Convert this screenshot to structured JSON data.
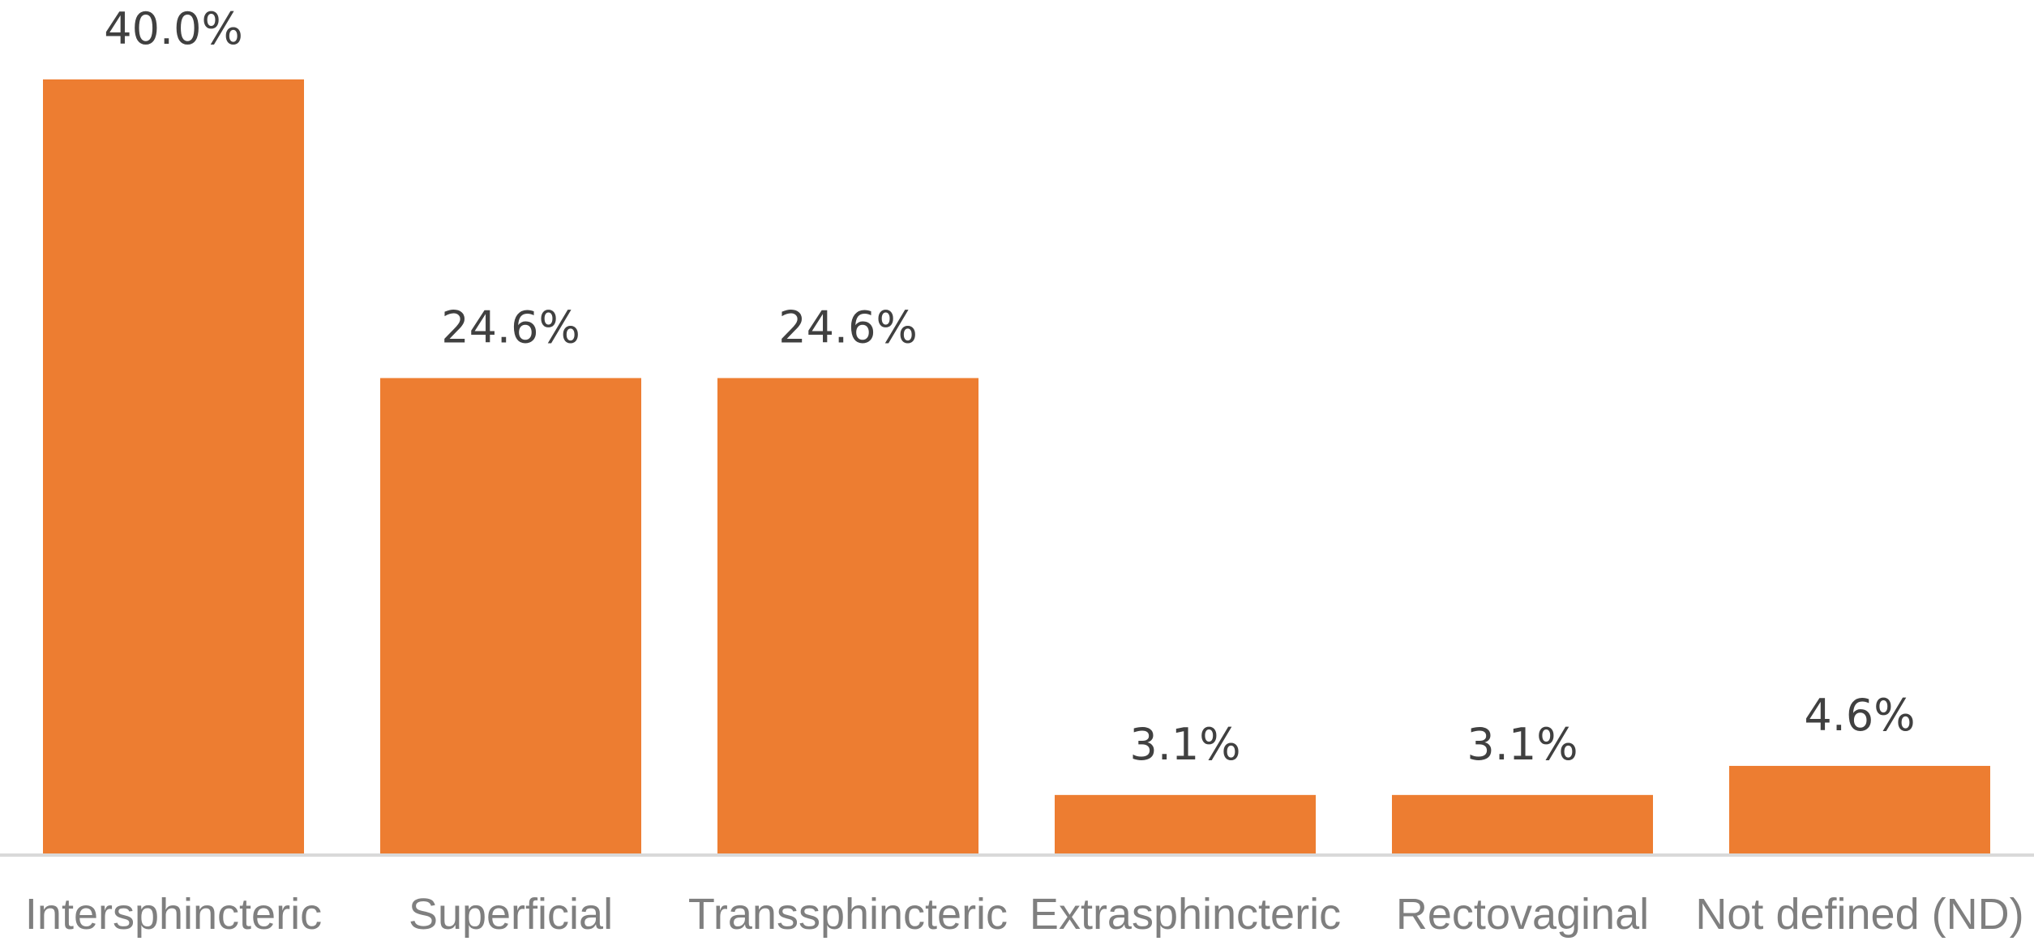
{
  "chart_data": {
    "type": "bar",
    "categories": [
      "Intersphincteric",
      "Superficial",
      "Transsphincteric",
      "Extrasphincteric",
      "Rectovaginal",
      "Not defined (ND)"
    ],
    "values": [
      40.0,
      24.6,
      24.6,
      3.1,
      3.1,
      4.6
    ],
    "data_labels": [
      "40.0%",
      "24.6%",
      "24.6%",
      "3.1%",
      "3.1%",
      "4.6%"
    ],
    "ylim": [
      0,
      40
    ],
    "grid": false,
    "legend": "none",
    "colors": {
      "bar": "#ed7d31",
      "axis": "#d9d9d9",
      "data_label": "#404040",
      "tick_label": "#7f7f7f"
    }
  }
}
